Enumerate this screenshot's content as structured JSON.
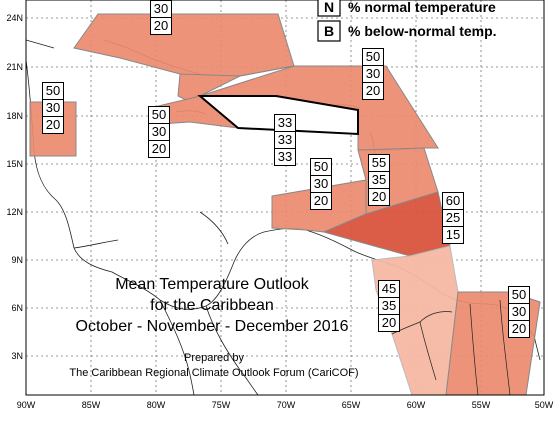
{
  "legend": {
    "items": [
      {
        "key": "N",
        "text": "% normal temperature"
      },
      {
        "key": "B",
        "text": "% below-normal temp."
      }
    ]
  },
  "title": {
    "line1": "Mean Temperature Outlook",
    "line2": "for the Caribbean",
    "line3": "October - November - December 2016"
  },
  "credit": {
    "line1": "Prepared by",
    "line2": "The Caribbean Regional Climate Outlook Forum (CariCOF)"
  },
  "axes": {
    "lon_labels": [
      "90W",
      "85W",
      "80W",
      "75W",
      "70W",
      "65W",
      "60W",
      "55W",
      "50W"
    ],
    "lat_labels": [
      "24N",
      "21N",
      "18N",
      "15N",
      "12N",
      "9N",
      "6N",
      "3N"
    ]
  },
  "colors": {
    "region_60": "#d9533d",
    "region_50": "#ec8a6f",
    "region_45": "#f6b8a2",
    "neutral": "#ffffff",
    "grid": "#777777"
  },
  "regions": [
    {
      "id": "bahamas",
      "probs": [
        "30",
        "20"
      ]
    },
    {
      "id": "belize",
      "probs": [
        "50",
        "30",
        "20"
      ]
    },
    {
      "id": "jamaica",
      "probs": [
        "50",
        "30",
        "20"
      ]
    },
    {
      "id": "leeward",
      "probs": [
        "50",
        "30",
        "20"
      ]
    },
    {
      "id": "hispaniola",
      "probs": [
        "33",
        "33",
        "33"
      ]
    },
    {
      "id": "abc",
      "probs": [
        "50",
        "30",
        "20"
      ]
    },
    {
      "id": "windward",
      "probs": [
        "55",
        "35",
        "20"
      ]
    },
    {
      "id": "trinidad",
      "probs": [
        "60",
        "25",
        "15"
      ]
    },
    {
      "id": "guyana",
      "probs": [
        "45",
        "35",
        "20"
      ]
    },
    {
      "id": "suriname",
      "probs": [
        "50",
        "30",
        "20"
      ]
    }
  ]
}
